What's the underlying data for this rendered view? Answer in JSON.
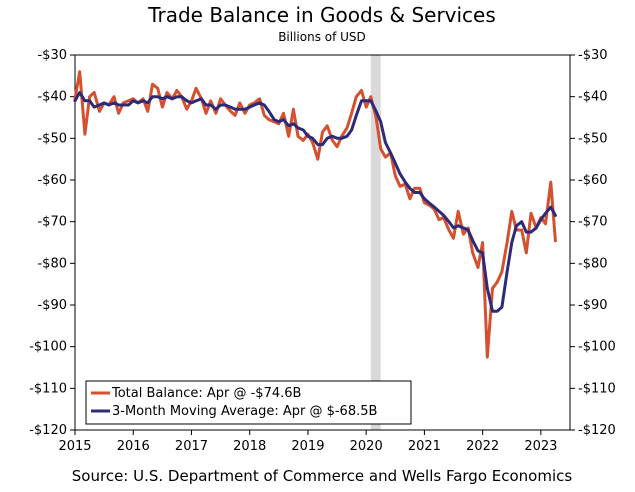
{
  "chart_data": {
    "type": "line",
    "title": "Trade Balance in Goods & Services",
    "subtitle": "Billions of USD",
    "source": "Source: U.S. Department of Commerce and Wells Fargo Economics",
    "xlim": [
      2015.0,
      2023.5
    ],
    "ylim": [
      -120,
      -30
    ],
    "y_ticks": [
      -30,
      -40,
      -50,
      -60,
      -70,
      -80,
      -90,
      -100,
      -110,
      -120
    ],
    "y_tick_labels": [
      "-$30",
      "-$40",
      "-$50",
      "-$60",
      "-$70",
      "-$80",
      "-$90",
      "-$100",
      "-$110",
      "-$120"
    ],
    "x_ticks": [
      2015,
      2016,
      2017,
      2018,
      2019,
      2020,
      2021,
      2022,
      2023
    ],
    "x_tick_labels": [
      "2015",
      "2016",
      "2017",
      "2018",
      "2019",
      "2020",
      "2021",
      "2022",
      "2023"
    ],
    "recession_band": [
      2020.08,
      2020.25
    ],
    "legend": "bottom-left",
    "series": [
      {
        "name": "Total Balance: Apr @ -$74.6B",
        "color": "#d4502e",
        "x": [
          2015.0,
          2015.08,
          2015.17,
          2015.25,
          2015.33,
          2015.42,
          2015.5,
          2015.58,
          2015.67,
          2015.75,
          2015.83,
          2015.92,
          2016.0,
          2016.08,
          2016.17,
          2016.25,
          2016.33,
          2016.42,
          2016.5,
          2016.58,
          2016.67,
          2016.75,
          2016.83,
          2016.92,
          2017.0,
          2017.08,
          2017.17,
          2017.25,
          2017.33,
          2017.42,
          2017.5,
          2017.58,
          2017.67,
          2017.75,
          2017.83,
          2017.92,
          2018.0,
          2018.08,
          2018.17,
          2018.25,
          2018.33,
          2018.42,
          2018.5,
          2018.58,
          2018.67,
          2018.75,
          2018.83,
          2018.92,
          2019.0,
          2019.08,
          2019.17,
          2019.25,
          2019.33,
          2019.42,
          2019.5,
          2019.58,
          2019.67,
          2019.75,
          2019.83,
          2019.92,
          2020.0,
          2020.08,
          2020.17,
          2020.25,
          2020.33,
          2020.42,
          2020.5,
          2020.58,
          2020.67,
          2020.75,
          2020.83,
          2020.92,
          2021.0,
          2021.08,
          2021.17,
          2021.25,
          2021.33,
          2021.42,
          2021.5,
          2021.58,
          2021.67,
          2021.75,
          2021.83,
          2021.92,
          2022.0,
          2022.08,
          2022.17,
          2022.25,
          2022.33,
          2022.42,
          2022.5,
          2022.58,
          2022.67,
          2022.75,
          2022.83,
          2022.92,
          2023.0,
          2023.08,
          2023.17,
          2023.25
        ],
        "values": [
          -40.5,
          -34.0,
          -49.0,
          -40.0,
          -39.0,
          -43.5,
          -41.5,
          -42.0,
          -40.0,
          -44.0,
          -41.5,
          -41.0,
          -40.5,
          -41.5,
          -40.5,
          -43.5,
          -37.0,
          -38.0,
          -42.5,
          -39.0,
          -40.5,
          -38.5,
          -40.0,
          -43.0,
          -41.0,
          -38.0,
          -40.5,
          -44.0,
          -41.0,
          -44.0,
          -40.5,
          -42.0,
          -43.5,
          -44.5,
          -41.5,
          -44.0,
          -42.0,
          -41.5,
          -40.5,
          -44.5,
          -45.5,
          -46.0,
          -46.5,
          -44.0,
          -49.5,
          -43.0,
          -49.5,
          -50.5,
          -49.0,
          -51.0,
          -55.0,
          -48.5,
          -47.0,
          -50.5,
          -52.0,
          -49.5,
          -47.5,
          -44.0,
          -40.0,
          -38.5,
          -42.5,
          -40.0,
          -45.0,
          -52.5,
          -54.5,
          -53.5,
          -59.0,
          -61.5,
          -61.0,
          -64.5,
          -62.0,
          -62.0,
          -65.5,
          -66.0,
          -67.0,
          -69.5,
          -69.0,
          -72.0,
          -74.0,
          -67.5,
          -73.0,
          -71.5,
          -77.5,
          -81.0,
          -75.0,
          -102.5,
          -86.0,
          -84.5,
          -82.0,
          -75.0,
          -67.5,
          -72.0,
          -72.0,
          -77.5,
          -68.0,
          -71.5,
          -69.0,
          -70.5,
          -60.5,
          -74.6
        ]
      },
      {
        "name": "3-Month Moving Average: Apr @ $-68.5B",
        "color": "#2d2a78",
        "x": [
          2015.0,
          2015.08,
          2015.17,
          2015.25,
          2015.33,
          2015.42,
          2015.5,
          2015.58,
          2015.67,
          2015.75,
          2015.83,
          2015.92,
          2016.0,
          2016.08,
          2016.17,
          2016.25,
          2016.33,
          2016.42,
          2016.5,
          2016.58,
          2016.67,
          2016.75,
          2016.83,
          2016.92,
          2017.0,
          2017.08,
          2017.17,
          2017.25,
          2017.33,
          2017.42,
          2017.5,
          2017.58,
          2017.67,
          2017.75,
          2017.83,
          2017.92,
          2018.0,
          2018.08,
          2018.17,
          2018.25,
          2018.33,
          2018.42,
          2018.5,
          2018.58,
          2018.67,
          2018.75,
          2018.83,
          2018.92,
          2019.0,
          2019.08,
          2019.17,
          2019.25,
          2019.33,
          2019.42,
          2019.5,
          2019.58,
          2019.67,
          2019.75,
          2019.83,
          2019.92,
          2020.0,
          2020.08,
          2020.17,
          2020.25,
          2020.33,
          2020.42,
          2020.5,
          2020.58,
          2020.67,
          2020.75,
          2020.83,
          2020.92,
          2021.0,
          2021.08,
          2021.17,
          2021.25,
          2021.33,
          2021.42,
          2021.5,
          2021.58,
          2021.67,
          2021.75,
          2021.83,
          2021.92,
          2022.0,
          2022.08,
          2022.17,
          2022.25,
          2022.33,
          2022.42,
          2022.5,
          2022.58,
          2022.67,
          2022.75,
          2022.83,
          2022.92,
          2023.0,
          2023.08,
          2023.17,
          2023.25
        ],
        "values": [
          -41.0,
          -39.0,
          -41.0,
          -41.0,
          -42.5,
          -42.0,
          -41.5,
          -42.0,
          -41.5,
          -42.0,
          -42.0,
          -42.0,
          -41.0,
          -41.5,
          -41.0,
          -41.5,
          -40.0,
          -40.0,
          -40.5,
          -40.0,
          -40.5,
          -40.0,
          -40.0,
          -41.0,
          -41.5,
          -41.0,
          -40.5,
          -42.0,
          -42.0,
          -43.0,
          -42.0,
          -42.0,
          -42.5,
          -43.0,
          -43.0,
          -43.0,
          -42.5,
          -42.0,
          -41.5,
          -42.0,
          -43.5,
          -45.5,
          -46.0,
          -45.5,
          -47.0,
          -46.5,
          -47.5,
          -48.0,
          -49.5,
          -50.0,
          -51.5,
          -51.5,
          -50.0,
          -49.5,
          -50.0,
          -50.0,
          -49.5,
          -48.0,
          -44.5,
          -41.0,
          -41.0,
          -41.0,
          -43.5,
          -46.0,
          -51.0,
          -53.5,
          -56.0,
          -58.5,
          -60.5,
          -62.0,
          -63.0,
          -63.0,
          -64.5,
          -65.5,
          -66.5,
          -67.5,
          -68.5,
          -70.0,
          -71.5,
          -71.0,
          -71.5,
          -72.0,
          -74.5,
          -77.0,
          -77.5,
          -86.0,
          -91.5,
          -91.5,
          -90.5,
          -82.0,
          -75.0,
          -71.0,
          -70.0,
          -72.5,
          -72.5,
          -71.5,
          -69.5,
          -68.0,
          -66.5,
          -68.5
        ]
      }
    ]
  }
}
